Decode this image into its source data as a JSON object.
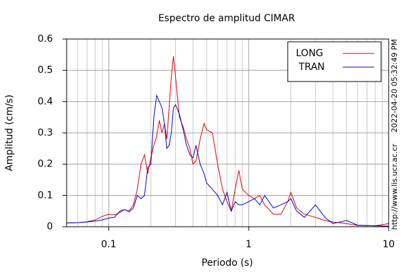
{
  "chart_data": {
    "type": "line",
    "title": "Espectro de amplitud CIMAR",
    "x_label": "Periodo (s)",
    "y_label": "Amplitud (cm/s)",
    "annotations": [
      "2022-04-20 05:32:49 PM",
      "http://www.lis.ucr.ac.cr"
    ],
    "x_scale": "log",
    "xlim": [
      0.05,
      10
    ],
    "ylim": [
      0,
      0.6
    ],
    "xticks": [
      0.1,
      1,
      10
    ],
    "xticks_minor": [
      0.05,
      0.06,
      0.07,
      0.08,
      0.09,
      0.2,
      0.3,
      0.4,
      0.5,
      0.6,
      0.7,
      0.8,
      0.9,
      2,
      3,
      4,
      5,
      6,
      7,
      8,
      9
    ],
    "yticks": [
      0,
      0.1,
      0.2,
      0.3,
      0.4,
      0.5,
      0.6
    ],
    "grid": true,
    "legend": "upper right",
    "x": [
      0.05,
      0.06,
      0.07,
      0.08,
      0.09,
      0.1,
      0.11,
      0.12,
      0.13,
      0.14,
      0.15,
      0.16,
      0.17,
      0.18,
      0.19,
      0.2,
      0.21,
      0.22,
      0.23,
      0.24,
      0.25,
      0.26,
      0.27,
      0.28,
      0.29,
      0.3,
      0.32,
      0.34,
      0.36,
      0.38,
      0.4,
      0.42,
      0.45,
      0.48,
      0.5,
      0.55,
      0.6,
      0.65,
      0.7,
      0.75,
      0.8,
      0.85,
      0.9,
      1.0,
      1.1,
      1.2,
      1.3,
      1.5,
      1.7,
      1.9,
      2.0,
      2.2,
      2.5,
      3,
      3.5,
      4,
      5,
      6,
      8,
      10
    ],
    "series": [
      {
        "name": "LONG",
        "color": "#dd0000",
        "values": [
          0.012,
          0.013,
          0.016,
          0.022,
          0.033,
          0.04,
          0.038,
          0.045,
          0.055,
          0.05,
          0.07,
          0.12,
          0.2,
          0.23,
          0.17,
          0.22,
          0.26,
          0.29,
          0.34,
          0.3,
          0.33,
          0.28,
          0.38,
          0.48,
          0.545,
          0.48,
          0.35,
          0.32,
          0.28,
          0.25,
          0.2,
          0.21,
          0.28,
          0.33,
          0.31,
          0.3,
          0.2,
          0.12,
          0.08,
          0.05,
          0.12,
          0.18,
          0.12,
          0.1,
          0.09,
          0.1,
          0.07,
          0.04,
          0.04,
          0.08,
          0.11,
          0.06,
          0.04,
          0.03,
          0.02,
          0.015,
          0.01,
          0.004,
          0.003,
          0.01
        ]
      },
      {
        "name": "TRAN",
        "color": "#0000cc",
        "values": [
          0.012,
          0.013,
          0.015,
          0.018,
          0.022,
          0.028,
          0.03,
          0.05,
          0.055,
          0.048,
          0.06,
          0.1,
          0.09,
          0.1,
          0.19,
          0.2,
          0.35,
          0.42,
          0.4,
          0.38,
          0.33,
          0.25,
          0.26,
          0.3,
          0.38,
          0.39,
          0.36,
          0.31,
          0.26,
          0.23,
          0.22,
          0.26,
          0.2,
          0.17,
          0.14,
          0.12,
          0.1,
          0.07,
          0.11,
          0.05,
          0.08,
          0.07,
          0.07,
          0.08,
          0.09,
          0.07,
          0.1,
          0.06,
          0.07,
          0.08,
          0.09,
          0.05,
          0.03,
          0.07,
          0.03,
          0.01,
          0.02,
          0.005,
          0.003,
          0.002
        ]
      }
    ]
  }
}
